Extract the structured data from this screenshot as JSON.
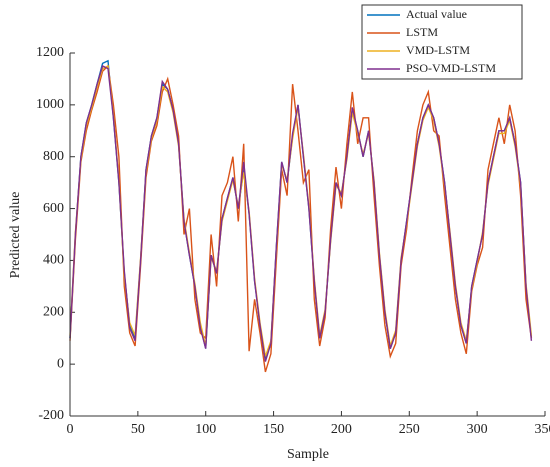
{
  "chart_data": {
    "type": "line",
    "xlabel": "Sample",
    "ylabel": "Predicted value",
    "xlim": [
      0,
      350
    ],
    "xticks": [
      0,
      50,
      100,
      150,
      200,
      250,
      300,
      350
    ],
    "ylim": [
      -200,
      1200
    ],
    "yticks": [
      -200,
      0,
      200,
      400,
      600,
      800,
      1000,
      1200
    ],
    "legend": "upper right",
    "x": [
      0,
      4,
      8,
      12,
      16,
      20,
      24,
      28,
      32,
      36,
      40,
      44,
      48,
      52,
      56,
      60,
      64,
      68,
      72,
      76,
      80,
      84,
      88,
      92,
      96,
      100,
      104,
      108,
      112,
      116,
      120,
      124,
      128,
      132,
      136,
      140,
      144,
      148,
      152,
      156,
      160,
      164,
      168,
      172,
      176,
      180,
      184,
      188,
      192,
      196,
      200,
      204,
      208,
      212,
      216,
      220,
      224,
      228,
      232,
      236,
      240,
      244,
      248,
      252,
      256,
      260,
      264,
      268,
      272,
      276,
      280,
      284,
      288,
      292,
      296,
      300,
      304,
      308,
      312,
      316,
      320,
      324,
      328,
      332,
      336,
      340
    ],
    "series": [
      {
        "name": "Actual value",
        "color": "#0072bd",
        "values": [
          100,
          500,
          800,
          930,
          1000,
          1080,
          1160,
          1170,
          950,
          700,
          350,
          150,
          100,
          400,
          750,
          880,
          950,
          1080,
          1060,
          980,
          850,
          550,
          420,
          300,
          150,
          60,
          420,
          350,
          560,
          640,
          720,
          600,
          750,
          580,
          320,
          150,
          20,
          80,
          450,
          780,
          700,
          880,
          1000,
          800,
          600,
          320,
          100,
          200,
          480,
          700,
          650,
          800,
          980,
          900,
          800,
          900,
          700,
          420,
          200,
          60,
          120,
          400,
          550,
          700,
          850,
          950,
          1000,
          950,
          850,
          700,
          500,
          300,
          150,
          80,
          300,
          400,
          500,
          700,
          800,
          900,
          900,
          950,
          850,
          700,
          300,
          100
        ]
      },
      {
        "name": "LSTM",
        "color": "#d95319",
        "values": [
          90,
          480,
          780,
          900,
          980,
          1050,
          1130,
          1150,
          1000,
          800,
          300,
          120,
          70,
          380,
          720,
          860,
          920,
          1050,
          1100,
          1000,
          880,
          500,
          600,
          250,
          120,
          100,
          500,
          300,
          650,
          700,
          800,
          550,
          850,
          50,
          250,
          120,
          -30,
          40,
          400,
          750,
          650,
          1080,
          900,
          700,
          750,
          250,
          70,
          180,
          520,
          760,
          600,
          850,
          1050,
          850,
          950,
          950,
          650,
          380,
          150,
          30,
          80,
          380,
          520,
          720,
          900,
          1000,
          1050,
          900,
          880,
          650,
          450,
          250,
          120,
          40,
          280,
          380,
          450,
          750,
          850,
          950,
          850,
          1000,
          900,
          650,
          250,
          100
        ]
      },
      {
        "name": "VMD-LSTM",
        "color": "#edb120",
        "values": [
          110,
          510,
          790,
          920,
          990,
          1070,
          1140,
          1150,
          960,
          710,
          340,
          160,
          110,
          410,
          740,
          870,
          940,
          1070,
          1050,
          970,
          840,
          560,
          430,
          310,
          160,
          70,
          410,
          360,
          550,
          630,
          710,
          610,
          740,
          590,
          330,
          160,
          30,
          90,
          440,
          770,
          710,
          870,
          990,
          810,
          610,
          330,
          110,
          210,
          470,
          690,
          660,
          790,
          970,
          890,
          810,
          890,
          710,
          430,
          210,
          70,
          130,
          410,
          540,
          690,
          840,
          940,
          990,
          940,
          840,
          690,
          510,
          310,
          160,
          90,
          290,
          390,
          510,
          690,
          790,
          890,
          890,
          940,
          840,
          690,
          310,
          110
        ]
      },
      {
        "name": "PSO-VMD-LSTM",
        "color": "#7e2f8e",
        "values": [
          100,
          500,
          800,
          930,
          1000,
          1080,
          1150,
          1140,
          950,
          700,
          360,
          140,
          90,
          400,
          750,
          880,
          950,
          1090,
          1060,
          980,
          850,
          550,
          420,
          300,
          140,
          60,
          420,
          350,
          560,
          640,
          720,
          600,
          780,
          580,
          320,
          150,
          10,
          80,
          450,
          780,
          700,
          890,
          1000,
          800,
          600,
          320,
          100,
          200,
          480,
          700,
          650,
          800,
          990,
          900,
          800,
          900,
          700,
          420,
          200,
          60,
          120,
          400,
          550,
          700,
          850,
          950,
          1000,
          950,
          850,
          700,
          500,
          300,
          150,
          80,
          300,
          400,
          500,
          700,
          800,
          900,
          900,
          950,
          850,
          700,
          300,
          90
        ]
      }
    ]
  }
}
